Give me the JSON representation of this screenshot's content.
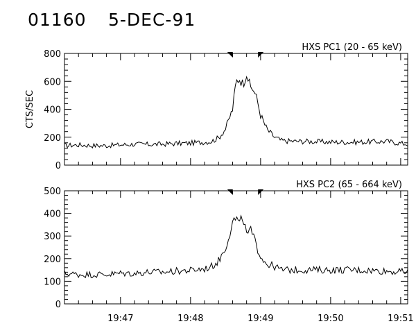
{
  "header": {
    "id": "01160",
    "date": "5-DEC-91"
  },
  "colors": {
    "line": "#000000",
    "background": "#ffffff"
  },
  "chart_data": [
    {
      "type": "line",
      "title": "HXS PC1 (20 - 65 keV)",
      "ylabel": "CTS/SEC",
      "xlabel": "",
      "xlim": [
        "19:46:12",
        "19:51:06"
      ],
      "ylim": [
        0,
        800
      ],
      "yticks": [
        "0",
        "200",
        "400",
        "600",
        "800"
      ],
      "xticks": [
        "19:47",
        "19:48",
        "19:49",
        "19:50",
        "19:51"
      ],
      "markers": [
        "19:48:35",
        "19:48:59"
      ],
      "series": [
        {
          "x": [
            "19:46:12",
            "19:46:24",
            "19:46:36",
            "19:46:48",
            "19:47:00",
            "19:47:12",
            "19:47:24",
            "19:47:36",
            "19:47:48",
            "19:48:00",
            "19:48:12",
            "19:48:18",
            "19:48:24",
            "19:48:30",
            "19:48:36",
            "19:48:39",
            "19:48:42",
            "19:48:45",
            "19:48:48",
            "19:48:51",
            "19:48:54",
            "19:48:57",
            "19:49:00",
            "19:49:03",
            "19:49:06",
            "19:49:12",
            "19:49:18",
            "19:49:30",
            "19:49:42",
            "19:50:00",
            "19:50:24",
            "19:50:48",
            "19:51:06"
          ],
          "values": [
            140,
            145,
            140,
            140,
            145,
            150,
            148,
            150,
            155,
            158,
            165,
            170,
            195,
            260,
            400,
            600,
            620,
            580,
            660,
            560,
            540,
            470,
            360,
            300,
            250,
            200,
            175,
            170,
            170,
            165,
            165,
            170,
            150
          ]
        }
      ]
    },
    {
      "type": "line",
      "title": "HXS PC2 (65 - 664 keV)",
      "ylabel": "",
      "xlabel": "",
      "xlim": [
        "19:46:12",
        "19:51:06"
      ],
      "ylim": [
        0,
        500
      ],
      "yticks": [
        "0",
        "100",
        "200",
        "300",
        "400",
        "500"
      ],
      "xticks": [
        "19:47",
        "19:48",
        "19:49",
        "19:50",
        "19:51"
      ],
      "markers": [
        "19:48:35",
        "19:48:59"
      ],
      "series": [
        {
          "x": [
            "19:46:12",
            "19:46:24",
            "19:46:36",
            "19:46:48",
            "19:47:00",
            "19:47:12",
            "19:47:24",
            "19:47:36",
            "19:47:48",
            "19:48:00",
            "19:48:12",
            "19:48:18",
            "19:48:24",
            "19:48:30",
            "19:48:36",
            "19:48:39",
            "19:48:42",
            "19:48:45",
            "19:48:48",
            "19:48:51",
            "19:48:54",
            "19:48:57",
            "19:49:00",
            "19:49:03",
            "19:49:06",
            "19:49:12",
            "19:49:18",
            "19:49:30",
            "19:49:42",
            "19:50:00",
            "19:50:24",
            "19:50:48",
            "19:51:06"
          ],
          "values": [
            135,
            130,
            130,
            130,
            135,
            135,
            140,
            140,
            145,
            148,
            155,
            165,
            190,
            250,
            360,
            380,
            350,
            390,
            300,
            330,
            290,
            250,
            215,
            190,
            175,
            165,
            150,
            150,
            150,
            150,
            150,
            145,
            140
          ]
        }
      ]
    }
  ]
}
